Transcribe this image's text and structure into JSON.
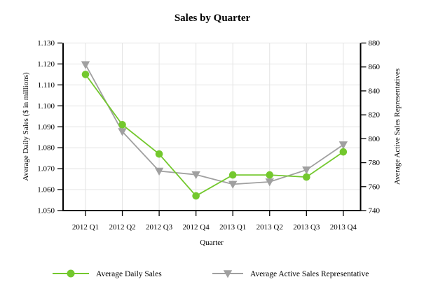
{
  "chart_data": {
    "type": "line",
    "title": "Sales by Quarter",
    "xlabel": "Quarter",
    "ylabel_left": "Average Daily Sales ($ in millions)",
    "ylabel_right": "Average Active Sales Representatives",
    "categories": [
      "2012 Q1",
      "2012 Q2",
      "2012 Q3",
      "2012 Q4",
      "2013 Q1",
      "2013 Q2",
      "2013 Q3",
      "2013 Q4"
    ],
    "series": [
      {
        "name": "Average Daily Sales",
        "axis": "left",
        "marker": "circle",
        "color": "#73c82d",
        "values": [
          1.115,
          1.091,
          1.077,
          1.057,
          1.067,
          1.067,
          1.066,
          1.078
        ]
      },
      {
        "name": "Average Active Sales Representative",
        "axis": "right",
        "marker": "triangle-down",
        "color": "#a0a0a0",
        "values": [
          862,
          806,
          773,
          770,
          762,
          764,
          774,
          795
        ]
      }
    ],
    "ylim_left": [
      1.05,
      1.13
    ],
    "yticks_left": [
      "1.050",
      "1.060",
      "1.070",
      "1.080",
      "1.090",
      "1.100",
      "1.110",
      "1.120",
      "1.130"
    ],
    "ylim_right": [
      740,
      880
    ],
    "yticks_right": [
      "740",
      "760",
      "780",
      "800",
      "820",
      "840",
      "860",
      "880"
    ],
    "grid": true,
    "legend_position": "bottom",
    "colors": {
      "grid": "#e3e3e3",
      "axis": "#000000",
      "text": "#000000",
      "background": "#ffffff"
    }
  }
}
